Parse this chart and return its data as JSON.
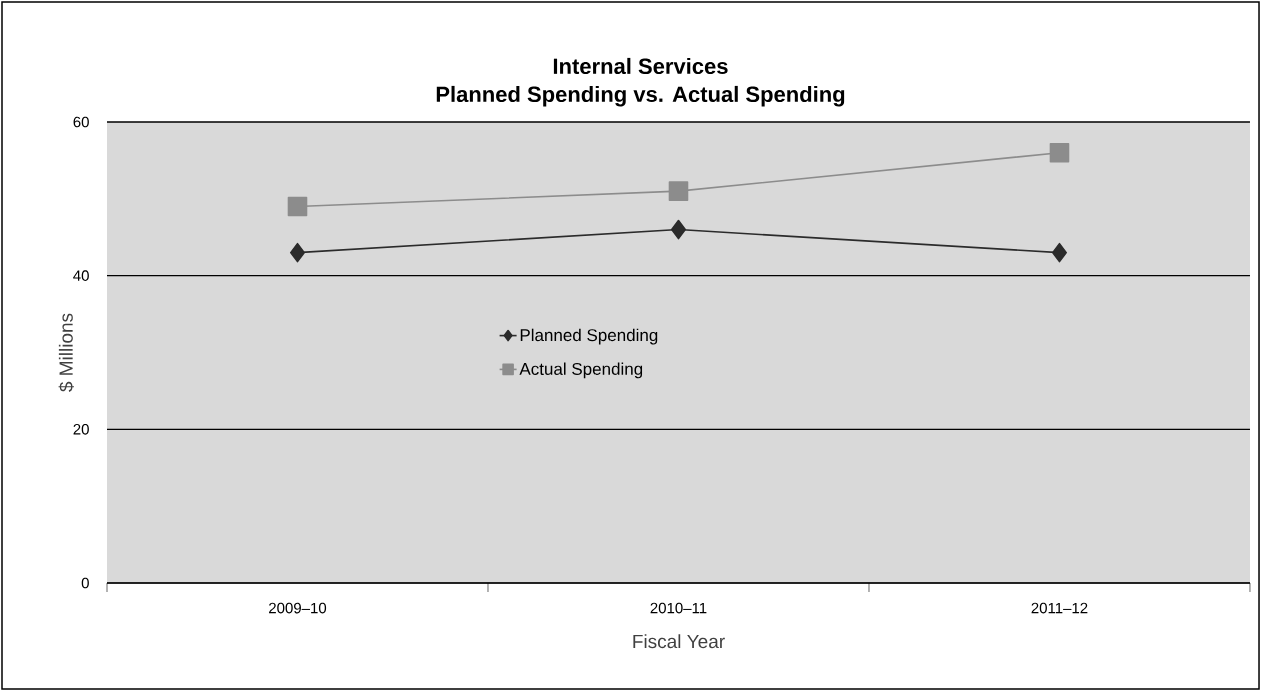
{
  "chart_data": {
    "type": "line",
    "title": "Internal Services",
    "subtitle": "Planned Spending vs. Actual Spending",
    "xlabel": "Fiscal Year",
    "ylabel": "$ Millions",
    "categories": [
      "2009–10",
      "2010–11",
      "2011–12"
    ],
    "series": [
      {
        "name": "Planned Spending",
        "color": "#2b2b2b",
        "marker": "diamond",
        "values": [
          43,
          46,
          43
        ]
      },
      {
        "name": "Actual Spending",
        "color": "#8c8c8c",
        "marker": "square",
        "values": [
          49,
          51,
          56
        ]
      }
    ],
    "ylim": [
      0,
      60
    ],
    "yticks": [
      0,
      20,
      40,
      60
    ],
    "grid": "y",
    "legend": "center",
    "line_style": "solid"
  }
}
